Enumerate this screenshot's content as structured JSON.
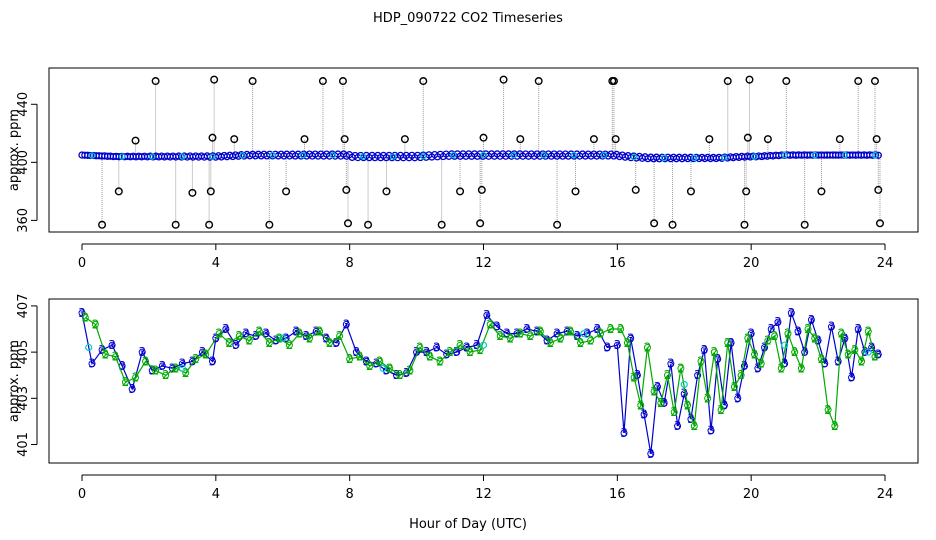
{
  "figure_title": "HDP_090722  CO2 Timeseries",
  "x_label": "Hour of Day (UTC)",
  "colors": {
    "calibration": "#000000",
    "series3": "#0000cc",
    "series2": "#00aa00",
    "series1": "#00cccc",
    "connector": "#999999"
  },
  "chart_data": [
    {
      "type": "scatter",
      "title": "HDP_090722  CO2 Timeseries",
      "xlabel": "Hour of Day (UTC)",
      "ylabel": "approx. ppm",
      "xlim": [
        0,
        24
      ],
      "ylim": [
        352,
        465
      ],
      "x_ticks": [
        "0",
        "4",
        "8",
        "12",
        "16",
        "20",
        "24"
      ],
      "y_ticks": [
        "360",
        "400",
        "440"
      ],
      "y_tick_values": [
        360,
        400,
        440
      ],
      "x_tick_values": [
        0,
        4,
        8,
        12,
        16,
        20,
        24
      ],
      "baseline_series": {
        "name": "ambient (blue circles)",
        "x": [
          0.0,
          1.0,
          2.0,
          3.0,
          4.0,
          5.0,
          6.0,
          7.0,
          7.9,
          8.1,
          9.0,
          10.0,
          11.0,
          12.0,
          13.0,
          14.0,
          15.0,
          15.9,
          16.3,
          17.0,
          18.0,
          19.0,
          19.9,
          20.1,
          21.0,
          22.0,
          23.0,
          23.8
        ],
        "y": [
          405,
          404,
          404,
          404,
          404,
          405,
          405,
          405,
          405,
          404,
          404,
          404,
          405,
          405,
          405,
          405,
          405,
          405,
          404,
          403,
          403,
          403,
          404,
          404,
          405,
          405,
          405,
          405
        ]
      },
      "calibration_points": {
        "name": "calibration (black circles)",
        "x": [
          0.6,
          1.1,
          1.6,
          2.2,
          2.8,
          3.3,
          3.8,
          3.85,
          3.9,
          3.95,
          4.55,
          5.1,
          5.6,
          6.1,
          6.65,
          7.2,
          7.8,
          7.85,
          7.9,
          7.95,
          8.55,
          9.1,
          9.65,
          10.2,
          10.75,
          11.3,
          11.9,
          11.95,
          12.0,
          12.6,
          13.1,
          13.65,
          14.2,
          14.75,
          15.3,
          15.85,
          15.9,
          15.95,
          16.55,
          17.1,
          17.65,
          18.2,
          18.75,
          19.3,
          19.8,
          19.85,
          19.9,
          19.95,
          20.5,
          21.05,
          21.6,
          22.1,
          22.65,
          23.2,
          23.7,
          23.75,
          23.8,
          23.85
        ],
        "y": [
          357,
          380,
          415,
          456,
          357,
          379,
          357,
          380,
          417,
          457,
          416,
          456,
          357,
          380,
          416,
          456,
          456,
          416,
          381,
          358,
          357,
          380,
          416,
          456,
          357,
          380,
          358,
          381,
          417,
          457,
          416,
          456,
          357,
          380,
          416,
          456,
          456,
          416,
          381,
          358,
          357,
          380,
          416,
          456,
          357,
          380,
          417,
          457,
          416,
          456,
          357,
          380,
          416,
          456,
          456,
          416,
          381,
          358
        ]
      }
    },
    {
      "type": "line",
      "title": "",
      "xlabel": "Hour of Day (UTC)",
      "ylabel": "approx. ppm",
      "xlim": [
        0,
        24
      ],
      "ylim": [
        400.2,
        407.3
      ],
      "x_ticks": [
        "0",
        "4",
        "8",
        "12",
        "16",
        "20",
        "24"
      ],
      "y_ticks": [
        "401",
        "403",
        "405",
        "407"
      ],
      "y_tick_values": [
        401,
        403,
        405,
        407
      ],
      "x_tick_values": [
        0,
        4,
        8,
        12,
        16,
        20,
        24
      ],
      "marker_labels": {
        "series3": "3",
        "series2": "2"
      },
      "series": [
        {
          "name": "3",
          "x": [
            0.0,
            0.3,
            0.6,
            0.9,
            1.2,
            1.5,
            1.8,
            2.1,
            2.4,
            2.7,
            3.0,
            3.3,
            3.6,
            3.9,
            4.0,
            4.3,
            4.6,
            4.9,
            5.2,
            5.5,
            5.8,
            6.1,
            6.4,
            6.7,
            7.0,
            7.3,
            7.6,
            7.9,
            8.2,
            8.5,
            8.8,
            9.1,
            9.4,
            9.7,
            10.0,
            10.3,
            10.6,
            10.9,
            11.2,
            11.5,
            11.8,
            12.1,
            12.4,
            12.7,
            13.0,
            13.3,
            13.6,
            13.9,
            14.2,
            14.5,
            14.8,
            15.1,
            15.4,
            15.7,
            16.0,
            16.2,
            16.4,
            16.6,
            16.8,
            17.0,
            17.2,
            17.4,
            17.6,
            17.8,
            18.0,
            18.2,
            18.4,
            18.6,
            18.8,
            19.0,
            19.2,
            19.4,
            19.6,
            19.8,
            20.0,
            20.2,
            20.4,
            20.6,
            20.8,
            21.0,
            21.2,
            21.4,
            21.6,
            21.8,
            22.0,
            22.2,
            22.4,
            22.6,
            22.8,
            23.0,
            23.2,
            23.4,
            23.6,
            23.8
          ],
          "y": [
            406.7,
            404.5,
            405.1,
            405.3,
            404.4,
            403.4,
            405.0,
            404.2,
            404.4,
            404.3,
            404.5,
            404.6,
            405.0,
            404.6,
            405.6,
            406.0,
            405.3,
            405.8,
            405.7,
            405.8,
            405.5,
            405.6,
            405.9,
            405.7,
            405.9,
            405.6,
            405.4,
            406.2,
            405.0,
            404.6,
            404.5,
            404.2,
            404.0,
            404.1,
            405.0,
            405.0,
            405.2,
            404.9,
            405.0,
            405.2,
            405.3,
            406.6,
            406.1,
            405.8,
            405.8,
            406.0,
            405.9,
            405.5,
            405.8,
            405.9,
            405.7,
            405.8,
            406.0,
            405.2,
            405.3,
            401.5,
            405.6,
            404.0,
            402.3,
            400.6,
            403.5,
            402.8,
            404.5,
            401.8,
            403.2,
            402.1,
            404.0,
            405.1,
            401.6,
            404.7,
            402.7,
            405.4,
            403.0,
            404.4,
            405.8,
            404.3,
            405.2,
            406.0,
            406.3,
            404.5,
            406.7,
            405.9,
            405.0,
            406.4,
            405.5,
            404.5,
            406.1,
            404.6,
            405.6,
            403.9,
            406.0,
            405.0,
            405.2,
            404.9
          ]
        },
        {
          "name": "2",
          "x": [
            0.1,
            0.4,
            0.7,
            1.0,
            1.3,
            1.6,
            1.9,
            2.2,
            2.5,
            2.8,
            3.1,
            3.4,
            3.7,
            4.1,
            4.4,
            4.7,
            5.0,
            5.3,
            5.6,
            5.9,
            6.2,
            6.5,
            6.8,
            7.1,
            7.4,
            7.7,
            8.0,
            8.3,
            8.6,
            8.9,
            9.2,
            9.5,
            9.8,
            10.1,
            10.4,
            10.7,
            11.0,
            11.3,
            11.6,
            11.9,
            12.2,
            12.5,
            12.8,
            13.1,
            13.4,
            13.7,
            14.0,
            14.3,
            14.6,
            14.9,
            15.2,
            15.5,
            15.8,
            16.1,
            16.3,
            16.5,
            16.7,
            16.9,
            17.1,
            17.3,
            17.5,
            17.7,
            17.9,
            18.1,
            18.3,
            18.5,
            18.7,
            18.9,
            19.1,
            19.3,
            19.5,
            19.7,
            19.9,
            20.1,
            20.3,
            20.5,
            20.7,
            20.9,
            21.1,
            21.3,
            21.5,
            21.7,
            21.9,
            22.1,
            22.3,
            22.5,
            22.7,
            22.9,
            23.1,
            23.3,
            23.5,
            23.7
          ],
          "y": [
            406.5,
            406.2,
            404.9,
            404.8,
            403.7,
            403.9,
            404.6,
            404.2,
            404.0,
            404.3,
            404.1,
            404.7,
            404.9,
            405.8,
            405.4,
            405.7,
            405.5,
            405.9,
            405.4,
            405.6,
            405.3,
            405.8,
            405.6,
            405.9,
            405.4,
            405.7,
            404.7,
            404.8,
            404.4,
            404.6,
            404.3,
            404.0,
            404.2,
            405.2,
            404.8,
            404.6,
            405.0,
            405.3,
            405.0,
            405.1,
            406.2,
            405.7,
            405.6,
            405.8,
            405.7,
            405.9,
            405.4,
            405.6,
            405.9,
            405.4,
            405.5,
            405.8,
            406.0,
            406.0,
            405.4,
            403.9,
            402.7,
            405.2,
            403.3,
            402.8,
            404.0,
            402.4,
            404.3,
            402.7,
            401.8,
            404.6,
            403.0,
            405.0,
            402.5,
            405.4,
            403.5,
            404.0,
            405.6,
            404.9,
            404.5,
            405.5,
            405.7,
            404.3,
            405.8,
            405.0,
            404.3,
            406.0,
            405.6,
            404.7,
            402.5,
            401.8,
            405.8,
            404.9,
            405.1,
            404.6,
            405.9,
            404.8
          ]
        },
        {
          "name": "1",
          "x": [
            0.2,
            3.0,
            6.0,
            9.0,
            12.0,
            15.0,
            18.0,
            21.0,
            23.5
          ],
          "y": [
            405.2,
            404.3,
            405.6,
            404.3,
            405.3,
            405.8,
            403.6,
            405.3,
            405.0
          ]
        }
      ]
    }
  ]
}
